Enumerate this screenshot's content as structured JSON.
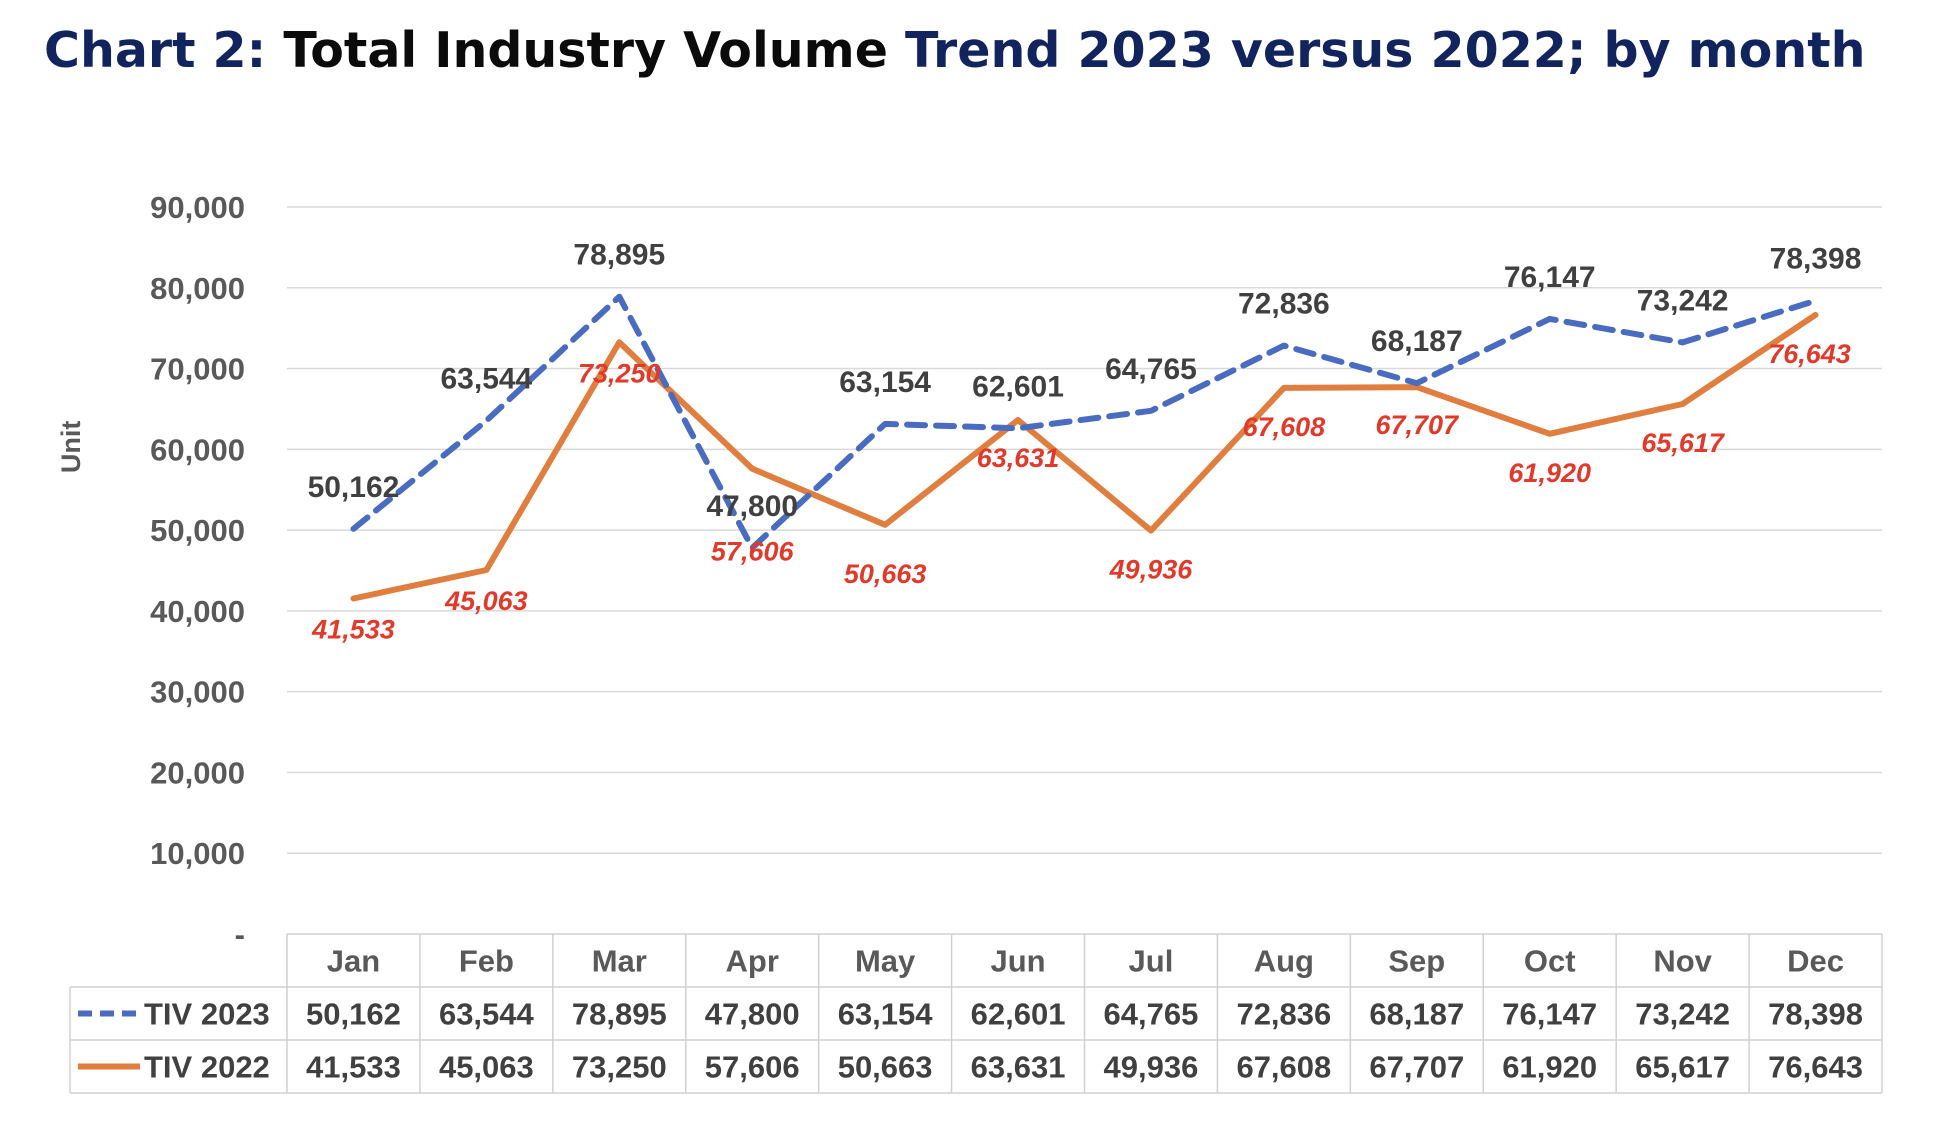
{
  "title": {
    "part1": "Chart 2: ",
    "part2": "Total Industry Volume ",
    "part3": "Trend 2023 versus 2022; by month"
  },
  "colors": {
    "title_blue": "#12245e",
    "series_2023": "#4a6cc0",
    "series_2022": "#e07e3f",
    "label_2022": "#e03a2a"
  },
  "chart_data": {
    "type": "line",
    "title": "Chart 2: Total Industry Volume Trend 2023 versus 2022; by month",
    "ylabel": "Unit",
    "xlabel": "",
    "ylim": [
      0,
      90000
    ],
    "yticks": [
      0,
      10000,
      20000,
      30000,
      40000,
      50000,
      60000,
      70000,
      80000,
      90000
    ],
    "ytick_labels": [
      "-",
      "10,000",
      "20,000",
      "30,000",
      "40,000",
      "50,000",
      "60,000",
      "70,000",
      "80,000",
      "90,000"
    ],
    "grid": true,
    "legend": "data-table",
    "categories": [
      "Jan",
      "Feb",
      "Mar",
      "Apr",
      "May",
      "Jun",
      "Jul",
      "Aug",
      "Sep",
      "Oct",
      "Nov",
      "Dec"
    ],
    "series": [
      {
        "name": "TIV 2023",
        "style": "dashed",
        "values": [
          50162,
          63544,
          78895,
          47800,
          63154,
          62601,
          64765,
          72836,
          68187,
          76147,
          73242,
          78398
        ],
        "labels": [
          "50,162",
          "63,544",
          "78,895",
          "47,800",
          "63,154",
          "62,601",
          "64,765",
          "72,836",
          "68,187",
          "76,147",
          "73,242",
          "78,398"
        ]
      },
      {
        "name": "TIV 2022",
        "style": "solid",
        "values": [
          41533,
          45063,
          73250,
          57606,
          50663,
          63631,
          49936,
          67608,
          67707,
          61920,
          65617,
          76643
        ],
        "labels": [
          "41,533",
          "45,063",
          "73,250",
          "57,606",
          "50,663",
          "63,631",
          "49,936",
          "67,608",
          "67,707",
          "61,920",
          "65,617",
          "76,643"
        ]
      }
    ]
  }
}
